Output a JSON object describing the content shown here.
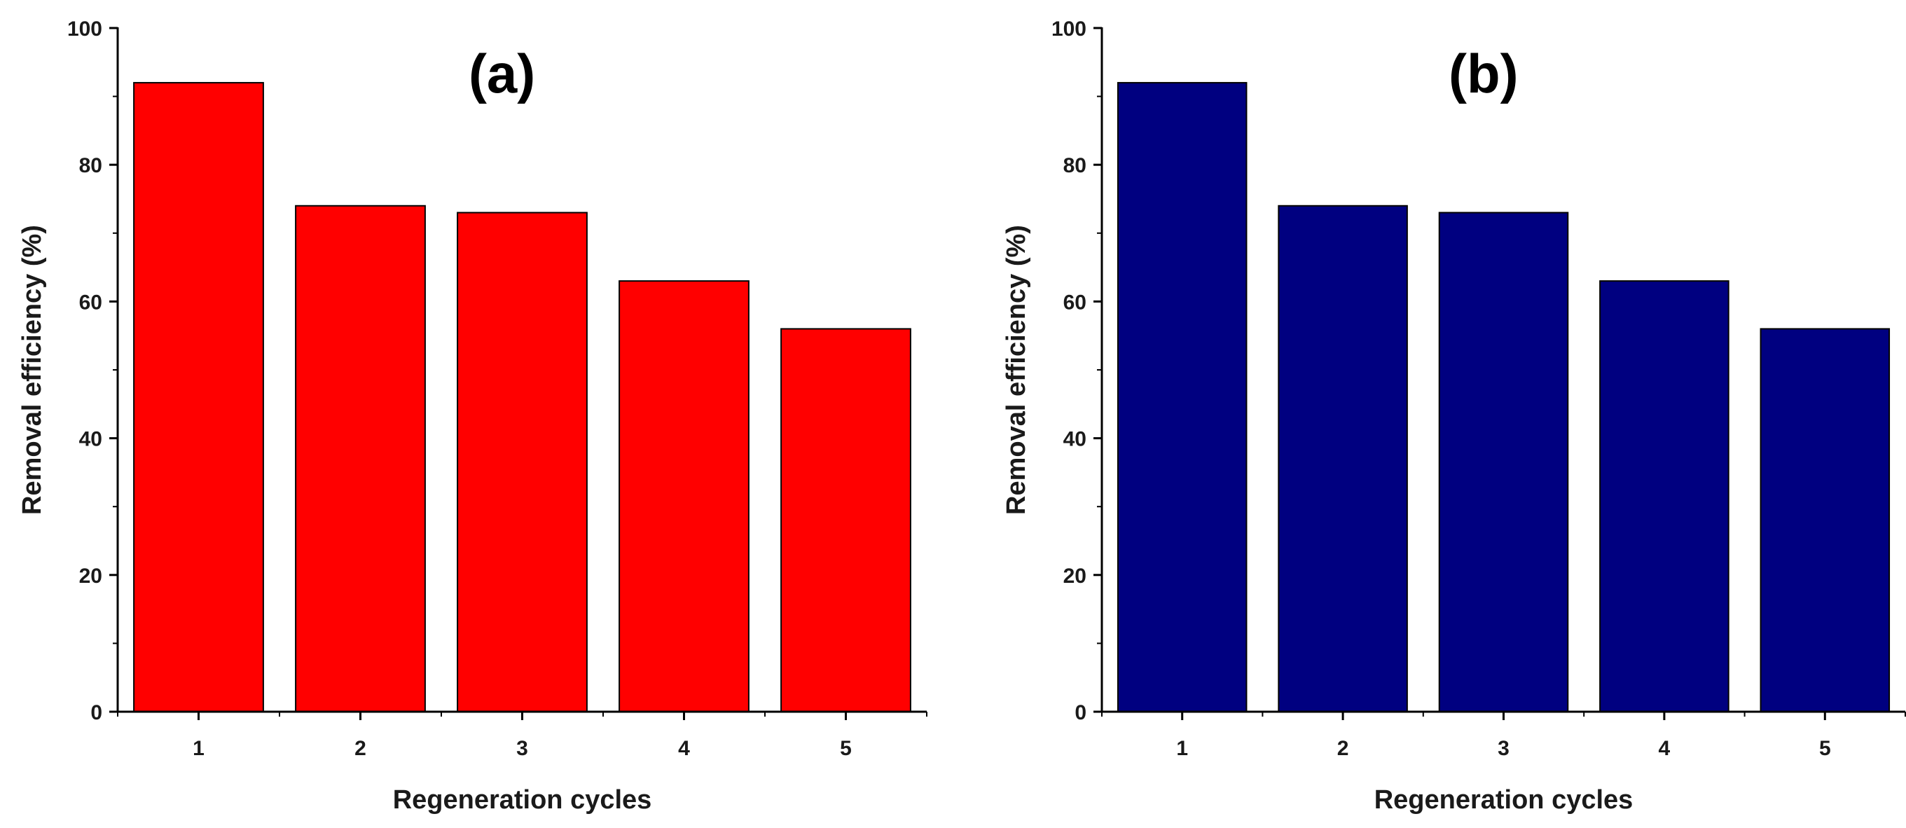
{
  "chart_data": [
    {
      "type": "bar",
      "title": "(a)",
      "xlabel": "Regeneration cycles",
      "ylabel": "Removal efficiency (%)",
      "categories": [
        "1",
        "2",
        "3",
        "4",
        "5"
      ],
      "values": [
        92,
        74,
        73,
        63,
        56
      ],
      "ylim": [
        0,
        100
      ],
      "yticks": [
        "0",
        "20",
        "40",
        "60",
        "80",
        "100"
      ],
      "bar_color": "#ff0000",
      "grid": false
    },
    {
      "type": "bar",
      "title": "(b)",
      "xlabel": "Regeneration cycles",
      "ylabel": "Removal efficiency (%)",
      "categories": [
        "1",
        "2",
        "3",
        "4",
        "5"
      ],
      "values": [
        92,
        74,
        73,
        63,
        56
      ],
      "ylim": [
        0,
        100
      ],
      "yticks": [
        "0",
        "20",
        "40",
        "60",
        "80",
        "100"
      ],
      "bar_color": "#000080",
      "grid": false
    }
  ]
}
